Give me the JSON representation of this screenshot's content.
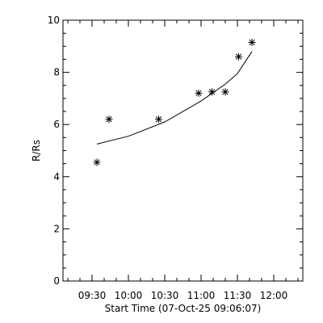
{
  "chart_data": {
    "type": "scatter",
    "xlabel": "Start Time (07-Oct-25 09:06:07)",
    "ylabel": "R/Rs",
    "xlim": [
      "09:06",
      "12:24"
    ],
    "ylim": [
      0,
      10
    ],
    "x_tick_labels": [
      "09:30",
      "10:00",
      "10:30",
      "11:00",
      "11:30",
      "12:00"
    ],
    "y_tick_labels": [
      "0",
      "2",
      "4",
      "6",
      "8",
      "10"
    ],
    "grid": false,
    "series": [
      {
        "marker": "asterisk",
        "points": [
          {
            "x": "09:34",
            "y": 4.55
          },
          {
            "x": "09:44",
            "y": 6.2
          },
          {
            "x": "10:25",
            "y": 6.2
          },
          {
            "x": "10:58",
            "y": 7.2
          },
          {
            "x": "11:09",
            "y": 7.25
          },
          {
            "x": "11:20",
            "y": 7.25
          },
          {
            "x": "11:31",
            "y": 8.6
          },
          {
            "x": "11:42",
            "y": 9.15
          }
        ]
      },
      {
        "style": "line",
        "points": [
          {
            "x": "09:34",
            "y": 5.25
          },
          {
            "x": "10:00",
            "y": 5.55
          },
          {
            "x": "10:30",
            "y": 6.1
          },
          {
            "x": "11:00",
            "y": 6.9
          },
          {
            "x": "11:20",
            "y": 7.55
          },
          {
            "x": "11:30",
            "y": 7.95
          },
          {
            "x": "11:42",
            "y": 8.8
          }
        ]
      }
    ]
  }
}
